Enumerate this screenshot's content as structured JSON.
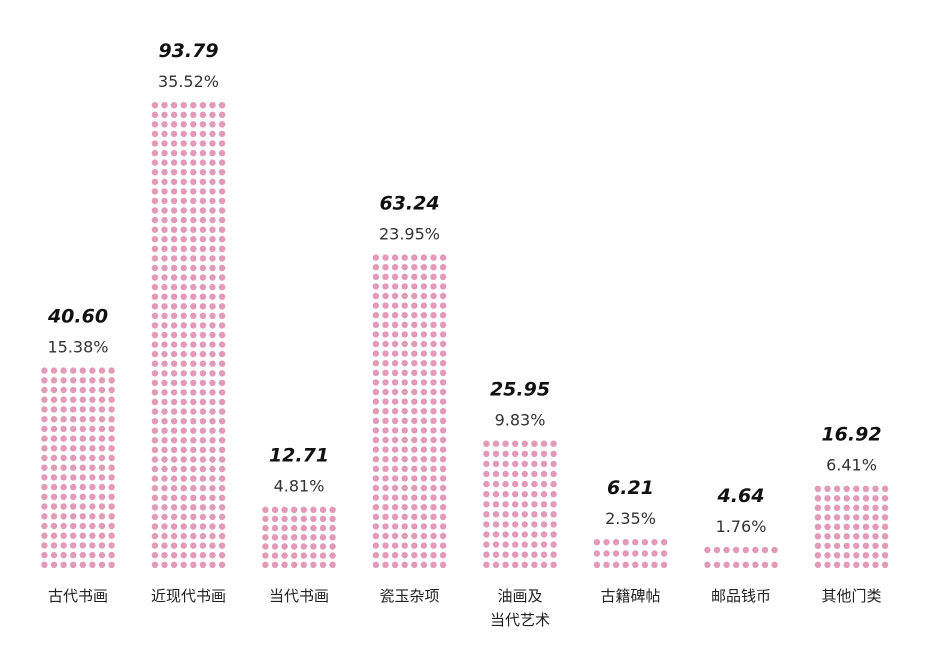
{
  "chart_data": {
    "type": "bar",
    "categories": [
      [
        "古代书画"
      ],
      [
        "近现代书画"
      ],
      [
        "当代书画"
      ],
      [
        "瓷玉杂项"
      ],
      [
        "油画及",
        "当代艺术"
      ],
      [
        "古籍碑帖"
      ],
      [
        "邮品钱币"
      ],
      [
        "其他门类"
      ]
    ],
    "series": [
      {
        "values": [
          40.6,
          93.79,
          12.71,
          63.24,
          25.95,
          6.21,
          4.64,
          16.92
        ],
        "value_labels": [
          "40.60",
          "93.79",
          "12.71",
          "63.24",
          "25.95",
          "6.21",
          "4.64",
          "16.92"
        ],
        "percent_labels": [
          "15.38%",
          "35.52%",
          "4.81%",
          "23.95%",
          "9.83%",
          "2.35%",
          "1.76%",
          "6.41%"
        ]
      }
    ],
    "bar_style": "dotted",
    "bar_color": "#e39ab8",
    "grid": false,
    "legend": "none"
  }
}
